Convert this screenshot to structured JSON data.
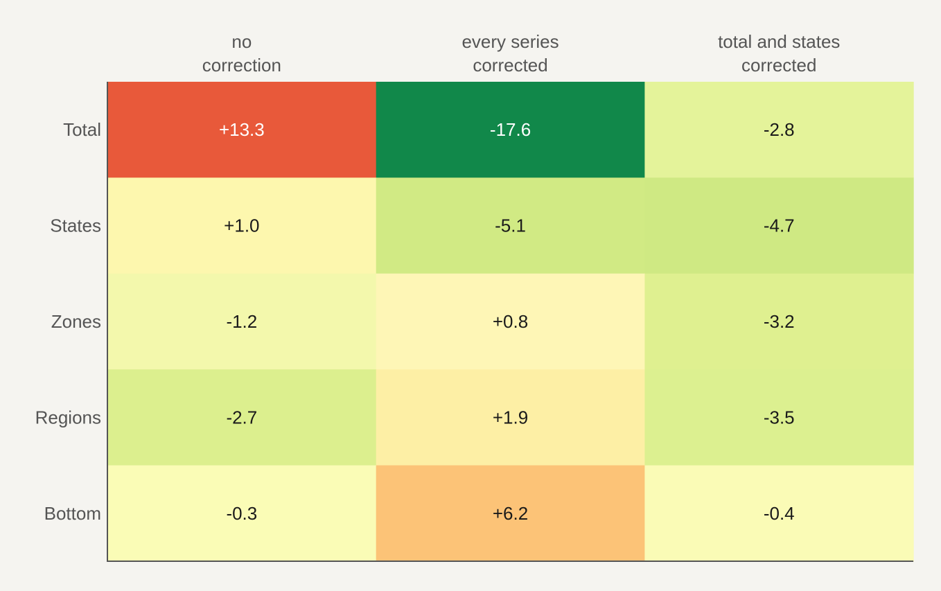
{
  "chart_data": {
    "type": "heatmap",
    "columns": [
      [
        "no",
        "correction"
      ],
      [
        "every series",
        "corrected"
      ],
      [
        "total and states",
        "corrected"
      ]
    ],
    "rows": [
      "Total",
      "States",
      "Zones",
      "Regions",
      "Bottom"
    ],
    "values": [
      [
        13.3,
        -17.6,
        -2.8
      ],
      [
        1.0,
        -5.1,
        -4.7
      ],
      [
        -1.2,
        0.8,
        -3.2
      ],
      [
        -2.7,
        1.9,
        -3.5
      ],
      [
        -0.3,
        6.2,
        -0.4
      ]
    ],
    "labels": [
      [
        "+13.3",
        "-17.6",
        "-2.8"
      ],
      [
        "+1.0",
        "-5.1",
        "-4.7"
      ],
      [
        "-1.2",
        "+0.8",
        "-3.2"
      ],
      [
        "-2.7",
        "+1.9",
        "-3.5"
      ],
      [
        "-0.3",
        "+6.2",
        "-0.4"
      ]
    ],
    "colors": [
      [
        "#e8593a",
        "#11884a",
        "#e4f39a"
      ],
      [
        "#fdf7ae",
        "#d1ea84",
        "#cfe983"
      ],
      [
        "#f3f8ac",
        "#fef6b6",
        "#dff090"
      ],
      [
        "#dcef8e",
        "#fdefa5",
        "#dcf090"
      ],
      [
        "#fafcb6",
        "#fcc377",
        "#fafbb6"
      ]
    ],
    "text_colors": [
      [
        "#ffffff",
        "#ffffff",
        "#1a1a1a"
      ],
      [
        "#1a1a1a",
        "#1a1a1a",
        "#1a1a1a"
      ],
      [
        "#1a1a1a",
        "#1a1a1a",
        "#1a1a1a"
      ],
      [
        "#1a1a1a",
        "#1a1a1a",
        "#1a1a1a"
      ],
      [
        "#1a1a1a",
        "#1a1a1a",
        "#1a1a1a"
      ]
    ],
    "colormap": "red-yellow-green (diverging, reversed)",
    "axis_color": "#555555",
    "background": "#f5f4f0"
  }
}
